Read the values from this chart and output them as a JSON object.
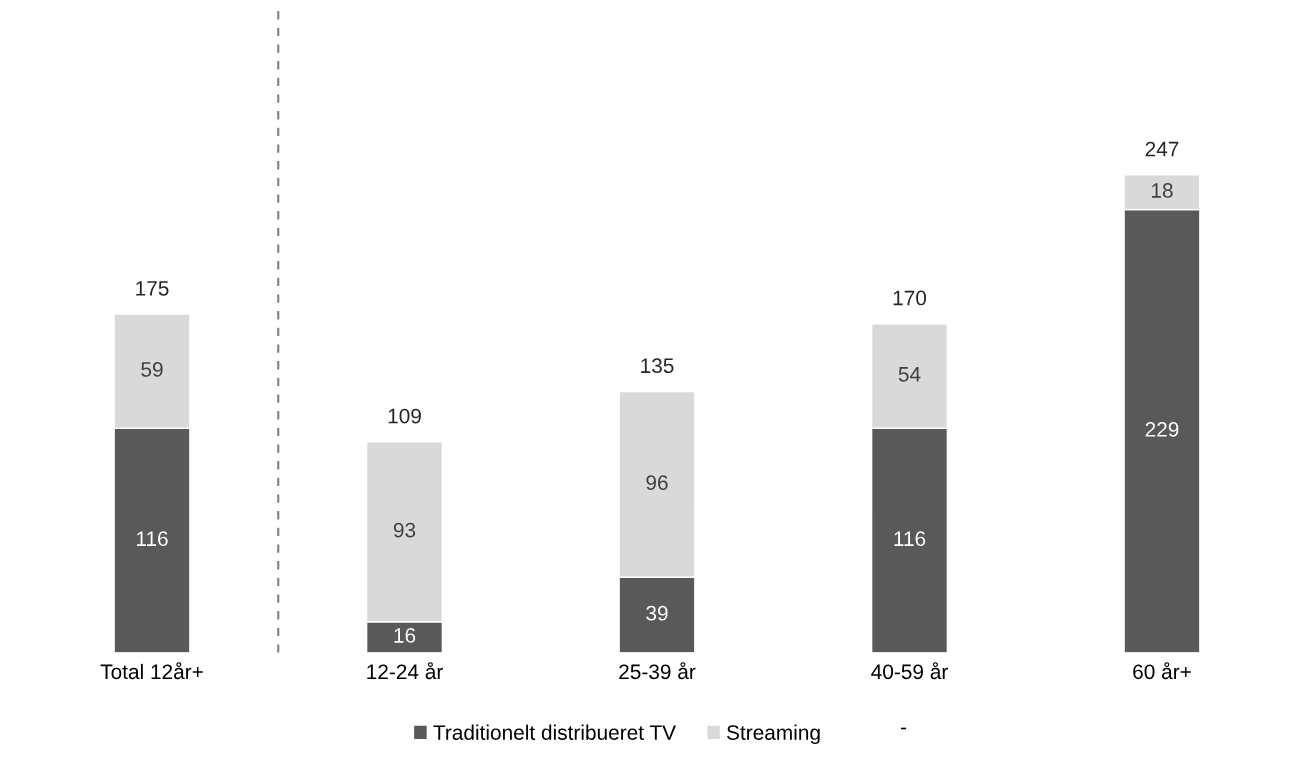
{
  "chart_data": {
    "type": "bar",
    "stacked": true,
    "categories": [
      "Total 12år+",
      "12-24 år",
      "25-39 år",
      "40-59 år",
      "60 år+"
    ],
    "series": [
      {
        "name": "Traditionelt distribueret TV",
        "color": "#595959",
        "values": [
          116,
          16,
          39,
          116,
          229
        ]
      },
      {
        "name": "Streaming",
        "color": "#d9d9d9",
        "values": [
          59,
          93,
          96,
          54,
          18
        ]
      }
    ],
    "totals": [
      "175",
      "109",
      "135",
      "170",
      "247"
    ],
    "data_labels": true,
    "tick_labels": "x",
    "legend": "bottom",
    "annotations": [
      "-"
    ]
  }
}
